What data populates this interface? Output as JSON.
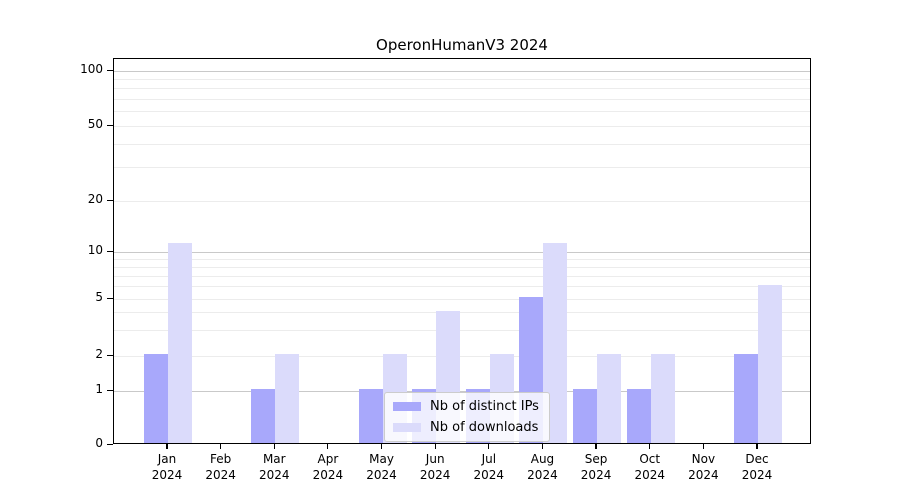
{
  "figure": {
    "title": "OperonHumanV3 2024"
  },
  "chart_data": {
    "type": "bar",
    "title": "OperonHumanV3 2024",
    "categories": [
      "Jan 2024",
      "Feb 2024",
      "Mar 2024",
      "Apr 2024",
      "May 2024",
      "Jun 2024",
      "Jul 2024",
      "Aug 2024",
      "Sep 2024",
      "Oct 2024",
      "Nov 2024",
      "Dec 2024"
    ],
    "x_tick_labels": [
      {
        "month": "Jan",
        "year": "2024"
      },
      {
        "month": "Feb",
        "year": "2024"
      },
      {
        "month": "Mar",
        "year": "2024"
      },
      {
        "month": "Apr",
        "year": "2024"
      },
      {
        "month": "May",
        "year": "2024"
      },
      {
        "month": "Jun",
        "year": "2024"
      },
      {
        "month": "Jul",
        "year": "2024"
      },
      {
        "month": "Aug",
        "year": "2024"
      },
      {
        "month": "Sep",
        "year": "2024"
      },
      {
        "month": "Oct",
        "year": "2024"
      },
      {
        "month": "Nov",
        "year": "2024"
      },
      {
        "month": "Dec",
        "year": "2024"
      }
    ],
    "series": [
      {
        "name": "Nb of distinct IPs",
        "color": "#a8a8fb",
        "values": [
          2,
          0,
          1,
          0,
          1,
          1,
          1,
          5,
          1,
          1,
          0,
          2
        ]
      },
      {
        "name": "Nb of downloads",
        "color": "#dbdbfb",
        "values": [
          11,
          0,
          2,
          0,
          2,
          4,
          2,
          11,
          2,
          2,
          0,
          6
        ]
      }
    ],
    "y_axis": {
      "scale": "log-like (0 baseline shown)",
      "tick_values": [
        0,
        1,
        2,
        5,
        10,
        20,
        50,
        100
      ],
      "tick_labels": [
        "0",
        "1",
        "2",
        "5",
        "10",
        "20",
        "50",
        "100"
      ],
      "major_grid_values": [
        1,
        10,
        100
      ],
      "minor_grid_values": [
        2,
        3,
        4,
        5,
        6,
        7,
        8,
        9,
        20,
        30,
        40,
        50,
        60,
        70,
        80,
        90
      ],
      "ylim": [
        0,
        100
      ]
    },
    "grid": true,
    "legend": {
      "position": "lower center",
      "items": [
        "Nb of distinct IPs",
        "Nb of downloads"
      ]
    },
    "colors": {
      "major_grid": "#c9c9c9",
      "minor_grid": "#ececec",
      "spine": "#000000",
      "background": "#ffffff"
    }
  }
}
